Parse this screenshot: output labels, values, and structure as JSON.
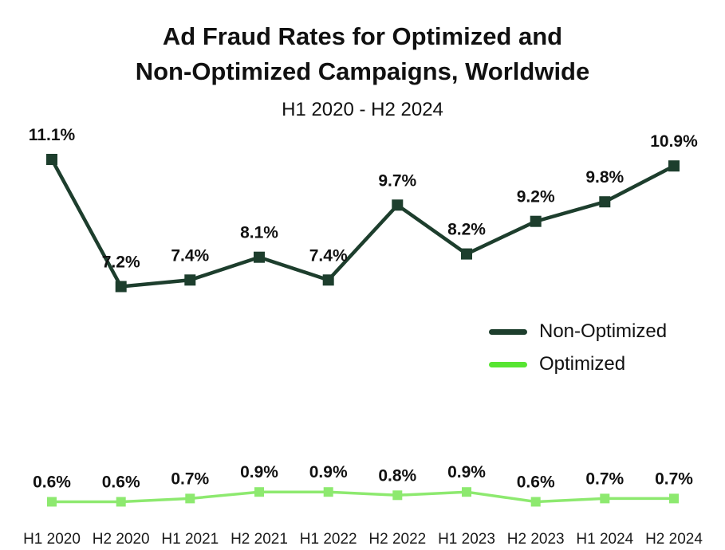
{
  "title": {
    "line1": "Ad Fraud Rates for Optimized and",
    "line2": "Non-Optimized Campaigns, Worldwide",
    "subtitle": "H1 2020 - H2 2024"
  },
  "colors": {
    "non_optimized": "#1D3E2D",
    "optimized_line": "#8DE96F",
    "optimized_legend_swatch": "#57E532",
    "label_text": "#111111",
    "background": "#FFFFFF"
  },
  "legend": {
    "items": [
      {
        "label": "Non-Optimized",
        "color": "#1D3E2D"
      },
      {
        "label": "Optimized",
        "color": "#57E532"
      }
    ]
  },
  "chart_data": {
    "type": "line",
    "title": "Ad Fraud Rates for Optimized and Non-Optimized Campaigns, Worldwide",
    "subtitle": "H1 2020 - H2 2024",
    "categories": [
      "H1 2020",
      "H2 2020",
      "H1 2021",
      "H2 2021",
      "H1 2022",
      "H2 2022",
      "H1 2023",
      "H2 2023",
      "H1 2024",
      "H2 2024"
    ],
    "series": [
      {
        "name": "Non-Optimized",
        "values": [
          11.1,
          7.2,
          7.4,
          8.1,
          7.4,
          9.7,
          8.2,
          9.2,
          9.8,
          10.9
        ],
        "labels": [
          "11.1%",
          "7.2%",
          "7.4%",
          "8.1%",
          "7.4%",
          "9.7%",
          "8.2%",
          "9.2%",
          "9.8%",
          "10.9%"
        ],
        "color": "#1D3E2D",
        "marker": "square",
        "line_width": 4.5,
        "marker_size": 14
      },
      {
        "name": "Optimized",
        "values": [
          0.6,
          0.6,
          0.7,
          0.9,
          0.9,
          0.8,
          0.9,
          0.6,
          0.7,
          0.7
        ],
        "labels": [
          "0.6%",
          "0.6%",
          "0.7%",
          "0.9%",
          "0.9%",
          "0.8%",
          "0.9%",
          "0.6%",
          "0.7%",
          "0.7%"
        ],
        "color": "#8DE96F",
        "marker": "square",
        "line_width": 3.5,
        "marker_size": 12
      }
    ],
    "xlabel": "",
    "ylabel": "",
    "ylim": [
      0,
      12
    ],
    "grid": false,
    "axes_visible": false,
    "data_labels": true,
    "legend_position": "center-right"
  }
}
